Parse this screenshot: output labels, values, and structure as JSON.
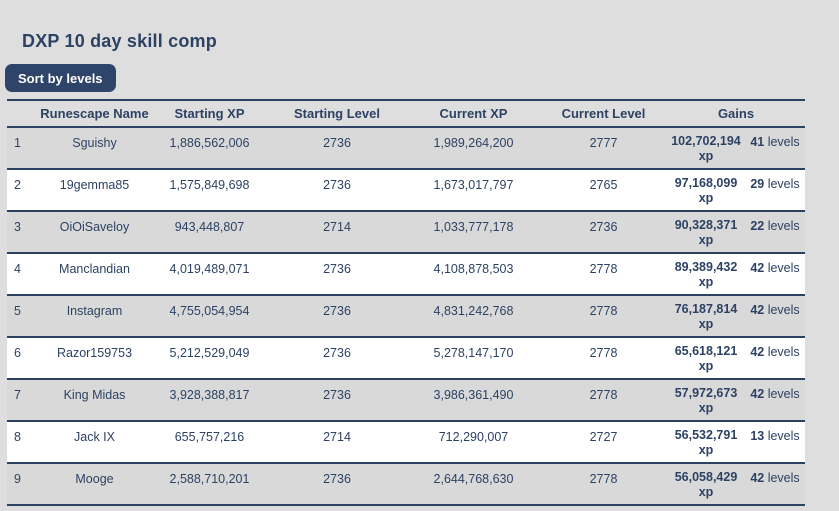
{
  "page": {
    "title": "DXP 10 day skill comp",
    "sort_button_label": "Sort by levels",
    "colors": {
      "background": "#dedede",
      "navy_accent": "#2d4263",
      "button_background": "#2e4468",
      "row_even": "#ffffff",
      "row_odd": "#d9d9d9",
      "button_text": "#ffffff"
    }
  },
  "table": {
    "columns": {
      "rank": "",
      "name": "Runescape Name",
      "starting_xp": "Starting XP",
      "starting_level": "Starting Level",
      "current_xp": "Current XP",
      "current_level": "Current Level",
      "gains": "Gains"
    },
    "labels": {
      "xp": "xp",
      "levels": "levels"
    },
    "rows": [
      {
        "rank": "1",
        "name": "Sguishy",
        "starting_xp": "1,886,562,006",
        "starting_level": "2736",
        "current_xp": "1,989,264,200",
        "current_level": "2777",
        "gains_xp": "102,702,194",
        "gains_levels": "41"
      },
      {
        "rank": "2",
        "name": "19gemma85",
        "starting_xp": "1,575,849,698",
        "starting_level": "2736",
        "current_xp": "1,673,017,797",
        "current_level": "2765",
        "gains_xp": "97,168,099",
        "gains_levels": "29"
      },
      {
        "rank": "3",
        "name": "OiOiSaveloy",
        "starting_xp": "943,448,807",
        "starting_level": "2714",
        "current_xp": "1,033,777,178",
        "current_level": "2736",
        "gains_xp": "90,328,371",
        "gains_levels": "22"
      },
      {
        "rank": "4",
        "name": "Manclandian",
        "starting_xp": "4,019,489,071",
        "starting_level": "2736",
        "current_xp": "4,108,878,503",
        "current_level": "2778",
        "gains_xp": "89,389,432",
        "gains_levels": "42"
      },
      {
        "rank": "5",
        "name": "Instagram",
        "starting_xp": "4,755,054,954",
        "starting_level": "2736",
        "current_xp": "4,831,242,768",
        "current_level": "2778",
        "gains_xp": "76,187,814",
        "gains_levels": "42"
      },
      {
        "rank": "6",
        "name": "Razor159753",
        "starting_xp": "5,212,529,049",
        "starting_level": "2736",
        "current_xp": "5,278,147,170",
        "current_level": "2778",
        "gains_xp": "65,618,121",
        "gains_levels": "42"
      },
      {
        "rank": "7",
        "name": "King Midas",
        "starting_xp": "3,928,388,817",
        "starting_level": "2736",
        "current_xp": "3,986,361,490",
        "current_level": "2778",
        "gains_xp": "57,972,673",
        "gains_levels": "42"
      },
      {
        "rank": "8",
        "name": "Jack IX",
        "starting_xp": "655,757,216",
        "starting_level": "2714",
        "current_xp": "712,290,007",
        "current_level": "2727",
        "gains_xp": "56,532,791",
        "gains_levels": "13"
      },
      {
        "rank": "9",
        "name": "Mooge",
        "starting_xp": "2,588,710,201",
        "starting_level": "2736",
        "current_xp": "2,644,768,630",
        "current_level": "2778",
        "gains_xp": "56,058,429",
        "gains_levels": "42"
      }
    ]
  }
}
